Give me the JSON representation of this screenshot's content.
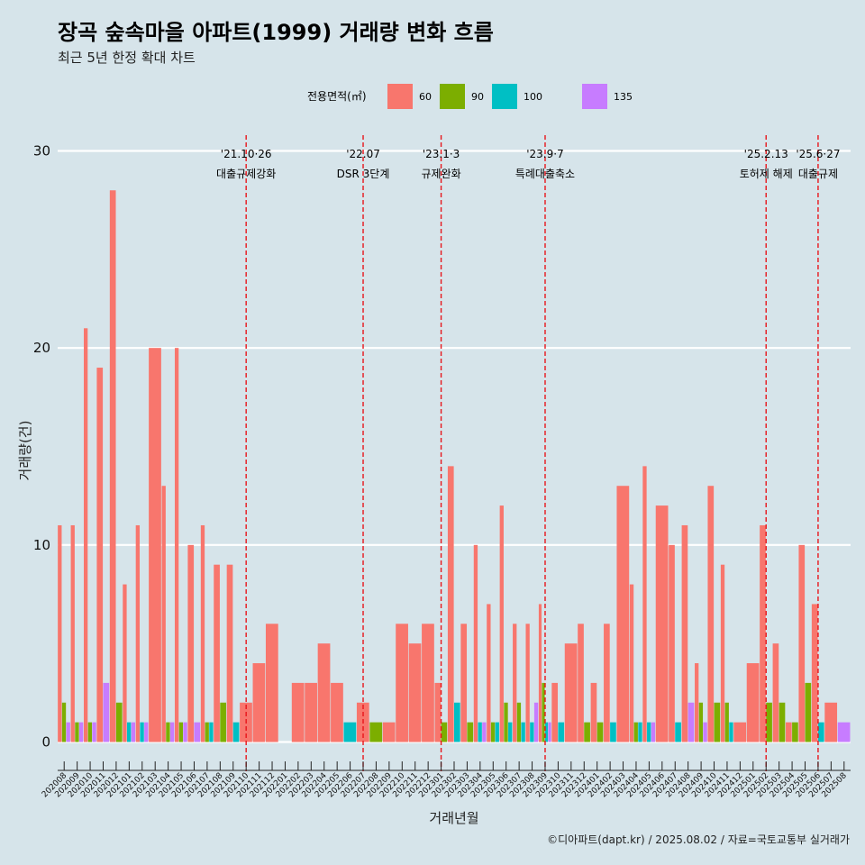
{
  "chart_data": {
    "type": "bar",
    "title": "장곡 숲속마을 아파트(1999) 거래량 변화 흐름",
    "subtitle": "최근 5년 한정 확대 차트",
    "xlabel": "거래년월",
    "ylabel": "거래량(건)",
    "ylim": [
      0,
      30
    ],
    "yticks": [
      0,
      10,
      20,
      30
    ],
    "grid": true,
    "legend_title": "전용면적(㎡)",
    "legend_position": "top",
    "caption": "©디아파트(dapt.kr) / 2025.08.02 / 자료=국토교통부 실거래가",
    "categories": [
      "202008",
      "202009",
      "202010",
      "202011",
      "202012",
      "202101",
      "202102",
      "202103",
      "202104",
      "202105",
      "202106",
      "202107",
      "202108",
      "202109",
      "202110",
      "202111",
      "202112",
      "202201",
      "202202",
      "202203",
      "202204",
      "202205",
      "202206",
      "202207",
      "202208",
      "202209",
      "202210",
      "202211",
      "202212",
      "202301",
      "202302",
      "202303",
      "202304",
      "202305",
      "202306",
      "202307",
      "202308",
      "202309",
      "202310",
      "202311",
      "202312",
      "202401",
      "202402",
      "202403",
      "202404",
      "202405",
      "202406",
      "202407",
      "202408",
      "202409",
      "202410",
      "202411",
      "202412",
      "202501",
      "202502",
      "202503",
      "202504",
      "202505",
      "202506",
      "202507",
      "202508"
    ],
    "series": [
      {
        "name": "60",
        "color": "#f8766d",
        "values": [
          11,
          11,
          21,
          19,
          28,
          8,
          11,
          20,
          13,
          20,
          10,
          11,
          9,
          9,
          2,
          4,
          6,
          0,
          3,
          3,
          5,
          3,
          0,
          2,
          0,
          1,
          6,
          5,
          6,
          3,
          14,
          6,
          10,
          7,
          12,
          6,
          6,
          7,
          3,
          5,
          6,
          3,
          6,
          13,
          8,
          14,
          12,
          10,
          11,
          4,
          13,
          9,
          1,
          4,
          11,
          5,
          1,
          10,
          7,
          2,
          0
        ]
      },
      {
        "name": "90",
        "color": "#7cae00",
        "values": [
          2,
          1,
          1,
          0,
          2,
          0,
          0,
          0,
          1,
          1,
          0,
          1,
          2,
          0,
          0,
          0,
          0,
          0,
          0,
          0,
          0,
          0,
          0,
          0,
          1,
          0,
          0,
          0,
          0,
          1,
          0,
          1,
          0,
          1,
          2,
          2,
          0,
          3,
          0,
          0,
          1,
          1,
          0,
          0,
          1,
          0,
          0,
          0,
          0,
          2,
          2,
          2,
          0,
          0,
          2,
          2,
          1,
          3,
          0,
          0,
          0
        ]
      },
      {
        "name": "100",
        "color": "#00bfc4",
        "values": [
          0,
          0,
          0,
          0,
          0,
          1,
          1,
          0,
          0,
          0,
          0,
          1,
          0,
          1,
          0,
          0,
          0,
          0,
          0,
          0,
          0,
          0,
          1,
          0,
          0,
          0,
          0,
          0,
          0,
          0,
          2,
          0,
          1,
          1,
          1,
          1,
          1,
          1,
          1,
          0,
          0,
          0,
          1,
          0,
          1,
          1,
          0,
          1,
          0,
          0,
          0,
          1,
          0,
          0,
          0,
          0,
          0,
          0,
          1,
          0,
          0
        ]
      },
      {
        "name": "135",
        "color": "#c77cff",
        "values": [
          1,
          1,
          1,
          3,
          0,
          1,
          1,
          0,
          1,
          1,
          1,
          0,
          0,
          0,
          0,
          0,
          0,
          0,
          0,
          0,
          0,
          0,
          0,
          0,
          0,
          0,
          0,
          0,
          0,
          0,
          0,
          0,
          1,
          0,
          0,
          0,
          2,
          1,
          0,
          0,
          0,
          0,
          0,
          0,
          0,
          1,
          0,
          0,
          2,
          1,
          0,
          0,
          0,
          0,
          0,
          0,
          0,
          0,
          0,
          0,
          1
        ]
      }
    ],
    "annotations": [
      {
        "date": "202110",
        "date_label": "'21.10·26",
        "label": "대출규제강화"
      },
      {
        "date": "202207",
        "date_label": "'22.07",
        "label": "DSR 3단계"
      },
      {
        "date": "202301",
        "date_label": "'23.1·3",
        "label": "규제완화"
      },
      {
        "date": "202309",
        "date_label": "'23.9·7",
        "label": "특례대출축소"
      },
      {
        "date": "202502",
        "date_label": "'25.2.13",
        "label": "토허제 해제"
      },
      {
        "date": "202506",
        "date_label": "'25.6·27",
        "label": "대출규제"
      }
    ]
  }
}
